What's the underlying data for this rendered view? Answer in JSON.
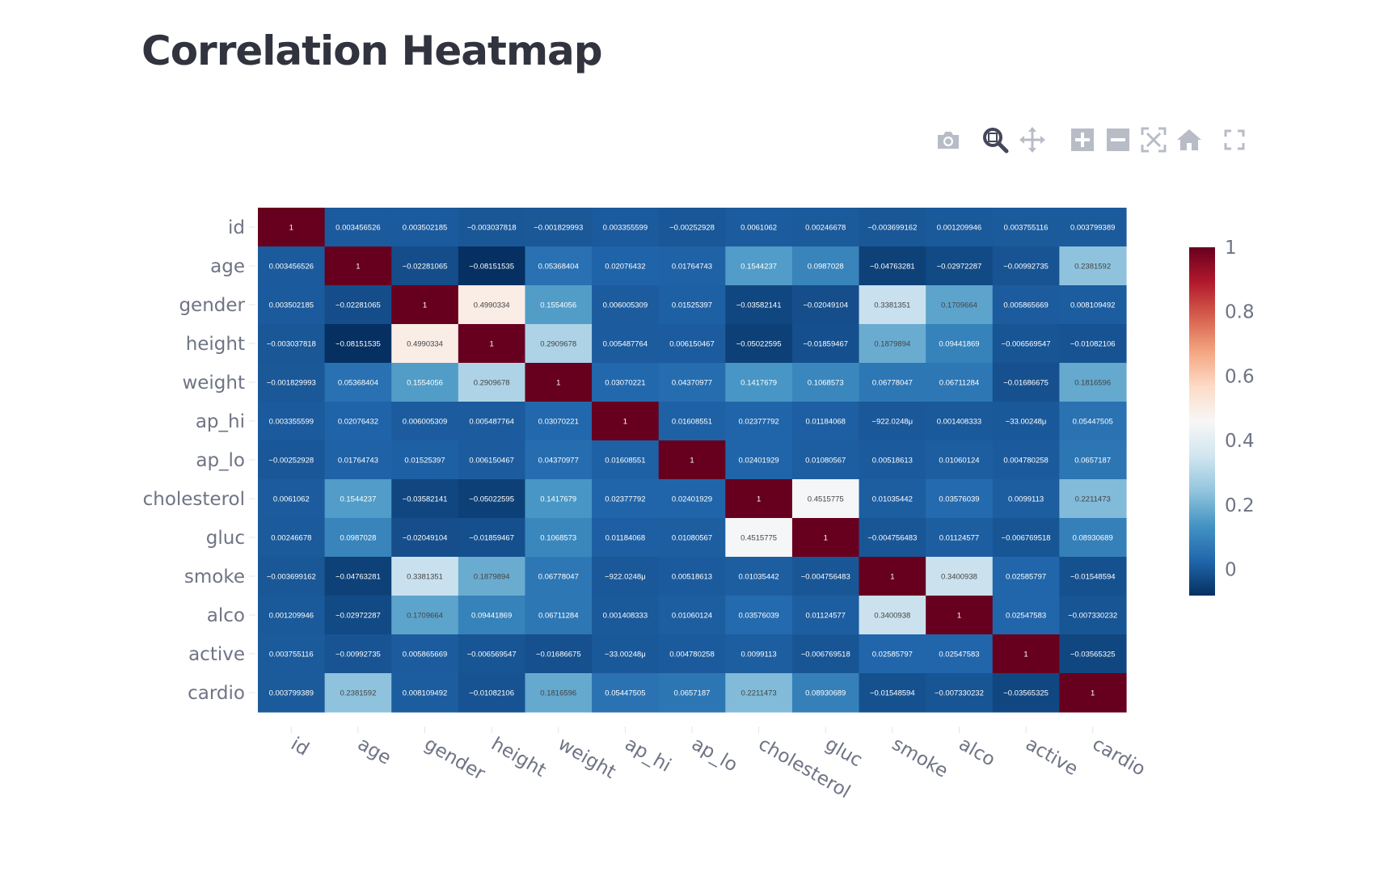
{
  "page": {
    "title": "Correlation Heatmap"
  },
  "modebar": {
    "buttons": [
      {
        "name": "camera-icon",
        "title": "Download plot as a png"
      },
      {
        "name": "zoom-icon",
        "title": "Zoom",
        "active": true
      },
      {
        "name": "pan-icon",
        "title": "Pan"
      },
      {
        "name": "zoom-in-icon",
        "title": "Zoom in"
      },
      {
        "name": "zoom-out-icon",
        "title": "Zoom out"
      },
      {
        "name": "autoscale-icon",
        "title": "Autoscale"
      },
      {
        "name": "reset-axes-icon",
        "title": "Reset axes"
      },
      {
        "name": "fullscreen-icon",
        "title": "View fullscreen"
      }
    ]
  },
  "chart_data": {
    "type": "heatmap",
    "title": "",
    "labels": [
      "id",
      "age",
      "gender",
      "height",
      "weight",
      "ap_hi",
      "ap_lo",
      "cholesterol",
      "gluc",
      "smoke",
      "alco",
      "active",
      "cardio"
    ],
    "cells": [
      [
        "1",
        "0.003456526",
        "0.003502185",
        "−0.003037818",
        "−0.001829993",
        "0.003355599",
        "−0.00252928",
        "0.0061062",
        "0.00246678",
        "−0.003699162",
        "0.001209946",
        "0.003755116",
        "0.003799389"
      ],
      [
        "0.003456526",
        "1",
        "−0.02281065",
        "−0.08151535",
        "0.05368404",
        "0.02076432",
        "0.01764743",
        "0.1544237",
        "0.0987028",
        "−0.04763281",
        "−0.02972287",
        "−0.00992735",
        "0.2381592"
      ],
      [
        "0.003502185",
        "−0.02281065",
        "1",
        "0.4990334",
        "0.1554056",
        "0.006005309",
        "0.01525397",
        "−0.03582141",
        "−0.02049104",
        "0.3381351",
        "0.1709664",
        "0.005865669",
        "0.008109492"
      ],
      [
        "−0.003037818",
        "−0.08151535",
        "0.4990334",
        "1",
        "0.2909678",
        "0.005487764",
        "0.006150467",
        "−0.05022595",
        "−0.01859467",
        "0.1879894",
        "0.09441869",
        "−0.006569547",
        "−0.01082106"
      ],
      [
        "−0.001829993",
        "0.05368404",
        "0.1554056",
        "0.2909678",
        "1",
        "0.03070221",
        "0.04370977",
        "0.1417679",
        "0.1068573",
        "0.06778047",
        "0.06711284",
        "−0.01686675",
        "0.1816596"
      ],
      [
        "0.003355599",
        "0.02076432",
        "0.006005309",
        "0.005487764",
        "0.03070221",
        "1",
        "0.01608551",
        "0.02377792",
        "0.01184068",
        "−922.0248μ",
        "0.001408333",
        "−33.00248μ",
        "0.05447505"
      ],
      [
        "−0.00252928",
        "0.01764743",
        "0.01525397",
        "0.006150467",
        "0.04370977",
        "0.01608551",
        "1",
        "0.02401929",
        "0.01080567",
        "0.00518613",
        "0.01060124",
        "0.004780258",
        "0.0657187"
      ],
      [
        "0.0061062",
        "0.1544237",
        "−0.03582141",
        "−0.05022595",
        "0.1417679",
        "0.02377792",
        "0.02401929",
        "1",
        "0.4515775",
        "0.01035442",
        "0.03576039",
        "0.0099113",
        "0.2211473"
      ],
      [
        "0.00246678",
        "0.0987028",
        "−0.02049104",
        "−0.01859467",
        "0.1068573",
        "0.01184068",
        "0.01080567",
        "0.4515775",
        "1",
        "−0.004756483",
        "0.01124577",
        "−0.006769518",
        "0.08930689"
      ],
      [
        "−0.003699162",
        "−0.04763281",
        "0.3381351",
        "0.1879894",
        "0.06778047",
        "−922.0248μ",
        "0.00518613",
        "0.01035442",
        "−0.004756483",
        "1",
        "0.3400938",
        "0.02585797",
        "−0.01548594"
      ],
      [
        "0.001209946",
        "−0.02972287",
        "0.1709664",
        "0.09441869",
        "0.06711284",
        "0.001408333",
        "0.01060124",
        "0.03576039",
        "0.01124577",
        "0.3400938",
        "1",
        "0.02547583",
        "−0.007330232"
      ],
      [
        "0.003755116",
        "−0.00992735",
        "0.005865669",
        "−0.006569547",
        "−0.01686675",
        "−33.00248μ",
        "0.004780258",
        "0.0099113",
        "−0.006769518",
        "0.02585797",
        "0.02547583",
        "1",
        "−0.03565325"
      ],
      [
        "0.003799389",
        "0.2381592",
        "0.008109492",
        "−0.01082106",
        "0.1816596",
        "0.05447505",
        "0.0657187",
        "0.2211473",
        "0.08930689",
        "−0.01548594",
        "−0.007330232",
        "−0.03565325",
        "1"
      ]
    ],
    "colorscale": [
      "#053061",
      "#2166ac",
      "#4393c3",
      "#92c5de",
      "#d1e5f0",
      "#f7f7f7",
      "#fddbc7",
      "#f4a582",
      "#d6604d",
      "#b2182b",
      "#67001f"
    ],
    "zmin": -0.0815,
    "zmax": 1,
    "colorbar": {
      "ticks": [
        0,
        0.2,
        0.4,
        0.6,
        0.8,
        1
      ],
      "tick_labels": [
        "0",
        "0.2",
        "0.4",
        "0.6",
        "0.8",
        "1"
      ]
    },
    "grid": false,
    "legend": "colorbar right"
  }
}
